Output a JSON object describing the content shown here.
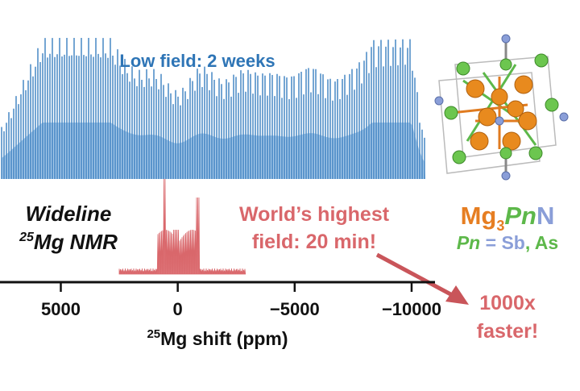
{
  "title": "Low field:  2 weeks",
  "method": {
    "line1": "Wideline",
    "line2_sup": "25",
    "line2": "Mg NMR"
  },
  "high_field": {
    "line1": "World’s highest",
    "line2": "field:  20 min!"
  },
  "compound": {
    "element1": "Mg",
    "sub": "3",
    "element2": "Pn",
    "element3": "N"
  },
  "pn_note": {
    "pn": "Pn",
    "eq": " = ",
    "sb": "Sb",
    "comma": ", ",
    "as": "As"
  },
  "speedup": {
    "line1": "1000x",
    "line2": "faster!"
  },
  "axis": {
    "label_sup": "25",
    "label": "Mg shift (ppm)",
    "xlim": [
      7600,
      -11000
    ],
    "ticks": [
      5000,
      0,
      {
        "value": -5000,
        "label": "−5000"
      },
      {
        "value": -10000,
        "label": "−10000"
      }
    ]
  }
}
